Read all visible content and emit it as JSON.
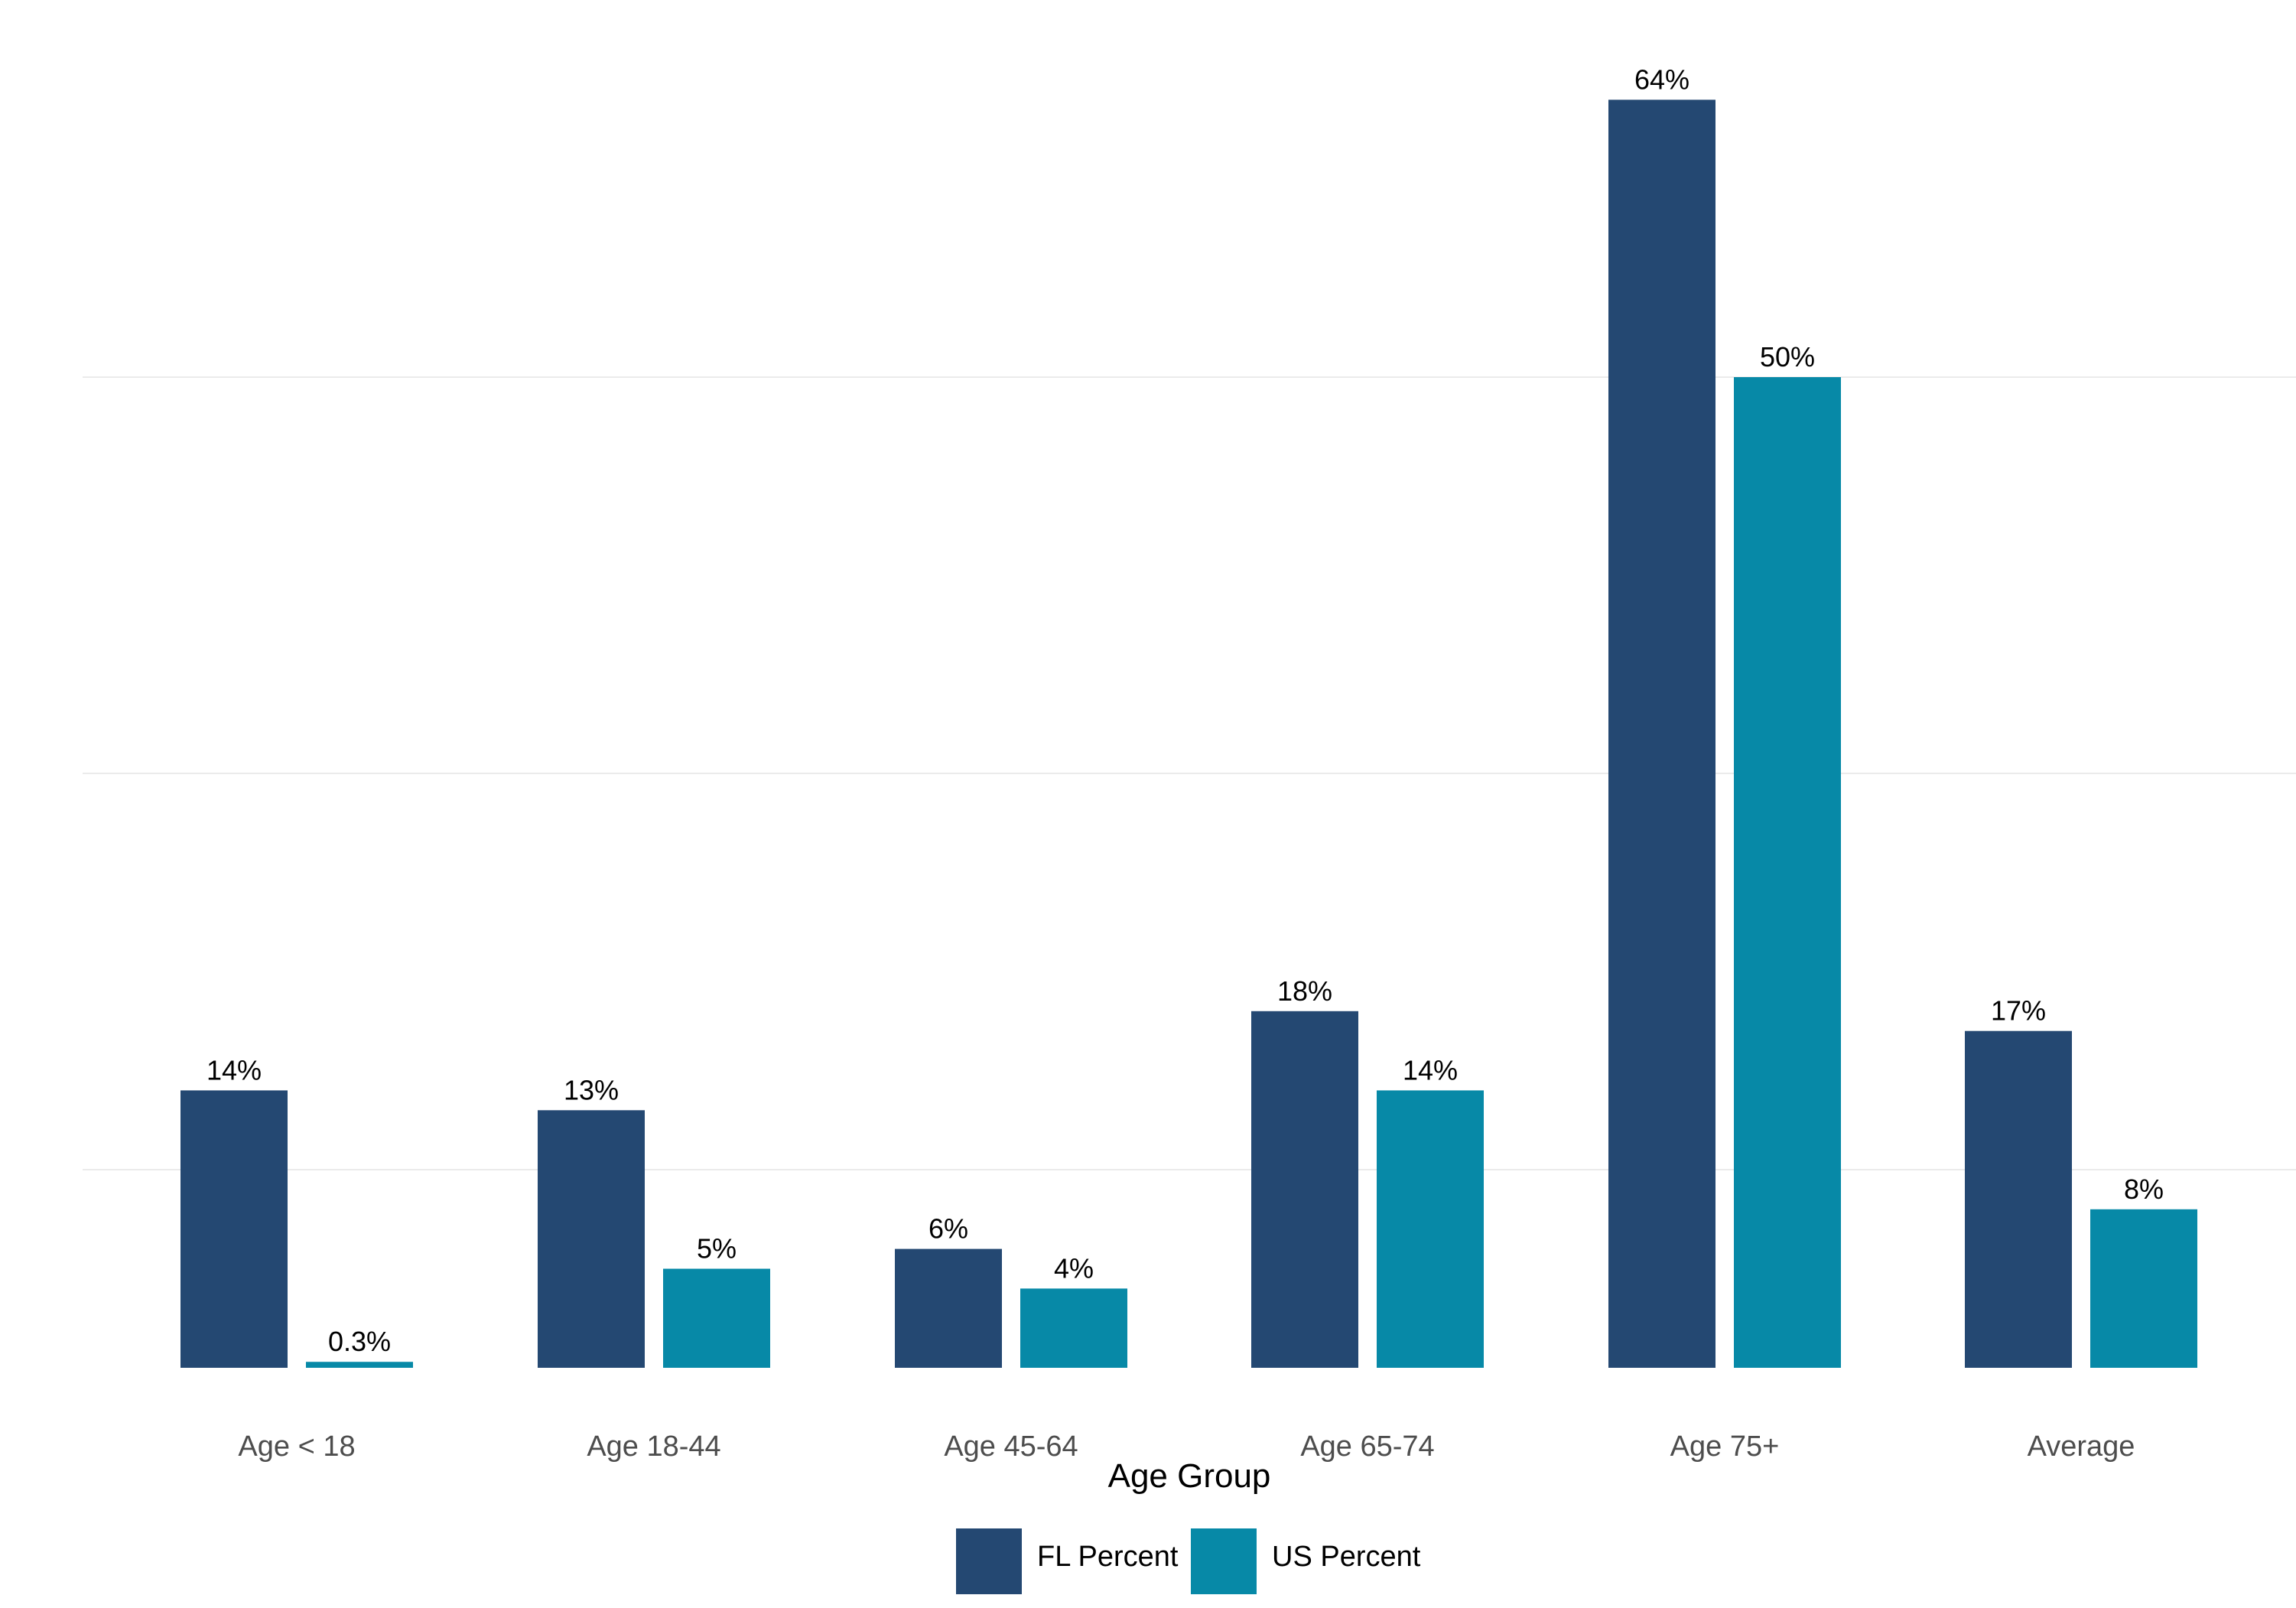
{
  "chart_data": {
    "type": "bar",
    "title": "",
    "xlabel": "Age Group",
    "ylabel": "",
    "categories": [
      "Age < 18",
      "Age 18-44",
      "Age 45-64",
      "Age 65-74",
      "Age 75+",
      "Average"
    ],
    "series": [
      {
        "name": "FL Percent",
        "color": "#244872",
        "values": [
          14,
          13,
          6,
          18,
          64,
          17
        ],
        "labels": [
          "14%",
          "13%",
          "6%",
          "18%",
          "64%",
          "17%"
        ]
      },
      {
        "name": "US Percent",
        "color": "#0789a7",
        "values": [
          0.3,
          5,
          4,
          14,
          50,
          8
        ],
        "labels": [
          "0.3%",
          "5%",
          "4%",
          "14%",
          "50%",
          "8%"
        ]
      }
    ],
    "ylim": [
      0,
      66
    ],
    "gridlines": [
      10,
      30,
      50
    ],
    "grid": true,
    "legend_position": "bottom"
  }
}
